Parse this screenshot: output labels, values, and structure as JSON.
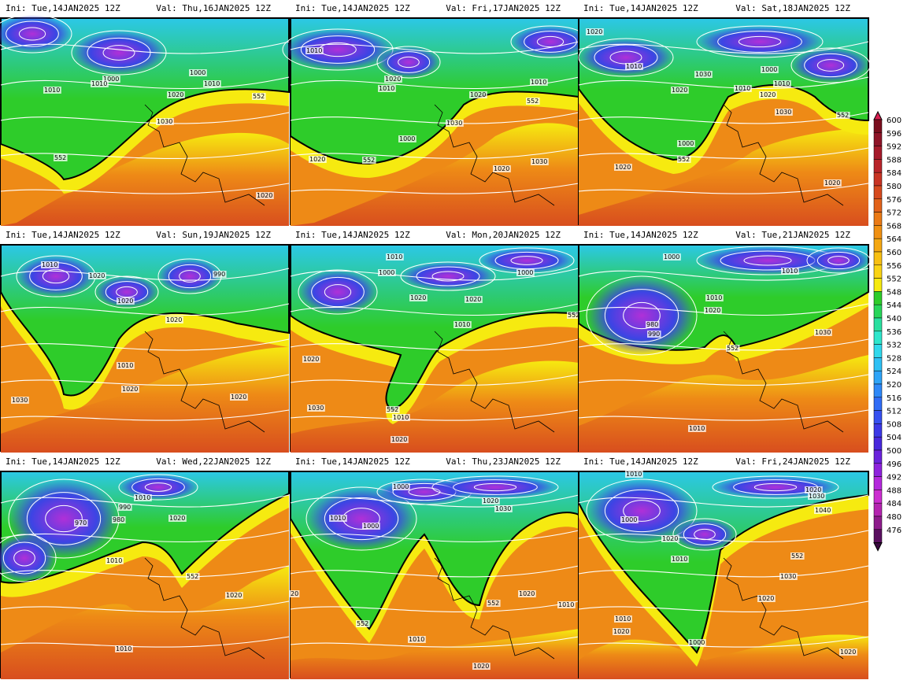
{
  "panels": [
    {
      "ini": "Ini: Tue,14JAN2025 12Z",
      "val": "Val: Thu,16JAN2025 12Z",
      "labels": [
        "1000",
        "1010",
        "1010",
        "1000",
        "1010",
        "1020",
        "1030",
        "552",
        "552",
        "1020"
      ]
    },
    {
      "ini": "Ini: Tue,14JAN2025 12Z",
      "val": "Val: Fri,17JAN2025 12Z",
      "labels": [
        "1010",
        "1020",
        "1010",
        "1010",
        "1020",
        "552",
        "1030",
        "1000",
        "1020",
        "552",
        "1020",
        "1030"
      ]
    },
    {
      "ini": "Ini: Tue,14JAN2025 12Z",
      "val": "Val: Sat,18JAN2025 12Z",
      "labels": [
        "1020",
        "1010",
        "1030",
        "1000",
        "1010",
        "1020",
        "1010",
        "1020",
        "1030",
        "552",
        "1000",
        "1020",
        "552",
        "1020"
      ]
    },
    {
      "ini": "Ini: Tue,14JAN2025 12Z",
      "val": "Val: Sun,19JAN2025 12Z",
      "labels": [
        "1010",
        "1020",
        "990",
        "1020",
        "1020",
        "1010",
        "1020",
        "1030",
        "1020"
      ]
    },
    {
      "ini": "Ini: Tue,14JAN2025 12Z",
      "val": "Val: Mon,20JAN2025 12Z",
      "labels": [
        "1010",
        "1000",
        "1000",
        "1020",
        "1020",
        "1010",
        "552",
        "1020",
        "1030",
        "552",
        "1010",
        "1020"
      ]
    },
    {
      "ini": "Ini: Tue,14JAN2025 12Z",
      "val": "Val: Tue,21JAN2025 12Z",
      "labels": [
        "1000",
        "1010",
        "1010",
        "1020",
        "980",
        "990",
        "552",
        "1030",
        "1010"
      ]
    },
    {
      "ini": "Ini: Tue,14JAN2025 12Z",
      "val": "Val: Wed,22JAN2025 12Z",
      "labels": [
        "1010",
        "990",
        "970",
        "980",
        "1020",
        "1010",
        "552",
        "1020",
        "1010"
      ]
    },
    {
      "ini": "Ini: Tue,14JAN2025 12Z",
      "val": "Val: Thu,23JAN2025 12Z",
      "labels": [
        "1000",
        "1020",
        "1030",
        "1010",
        "1000",
        "20",
        "552",
        "1020",
        "1010",
        "1010",
        "1020",
        "552"
      ]
    },
    {
      "ini": "Ini: Tue,14JAN2025 12Z",
      "val": "Val: Fri,24JAN2025 12Z",
      "labels": [
        "1010",
        "1020",
        "1030",
        "1000",
        "1020",
        "1040",
        "1010",
        "552",
        "1030",
        "1020",
        "1010",
        "1020",
        "1000",
        "1020"
      ]
    }
  ],
  "colorbar": {
    "values": [
      "600",
      "596",
      "592",
      "588",
      "584",
      "580",
      "576",
      "572",
      "568",
      "564",
      "560",
      "556",
      "552",
      "548",
      "544",
      "540",
      "536",
      "532",
      "528",
      "524",
      "520",
      "516",
      "512",
      "508",
      "504",
      "500",
      "496",
      "492",
      "488",
      "484",
      "480",
      "476"
    ],
    "colors": [
      "#7a0e1e",
      "#8e1428",
      "#a51a2a",
      "#b8242a",
      "#c83424",
      "#d64a1e",
      "#e2621a",
      "#ea7a16",
      "#f09012",
      "#f5a812",
      "#f8c012",
      "#fad414",
      "#f6ea10",
      "#2ecc2a",
      "#28d65a",
      "#2ae0a0",
      "#2ee6cc",
      "#30d8ec",
      "#2ec0f4",
      "#2ea4f8",
      "#2e88f8",
      "#306cf6",
      "#3650f0",
      "#3c38e6",
      "#4828dc",
      "#6a22dc",
      "#8e22dc",
      "#b428dc",
      "#cc2ed0",
      "#b424b0",
      "#8e1c8c",
      "#5a1060"
    ]
  },
  "regions": {
    "ocean_cold": "#2cc8e8",
    "trough": "#2ecc2a",
    "ridge": "#f6ea10",
    "warm": "#ee8a16",
    "hot": "#d84e1e",
    "polar": "#3c44e4",
    "vortex": "#b030d8"
  }
}
